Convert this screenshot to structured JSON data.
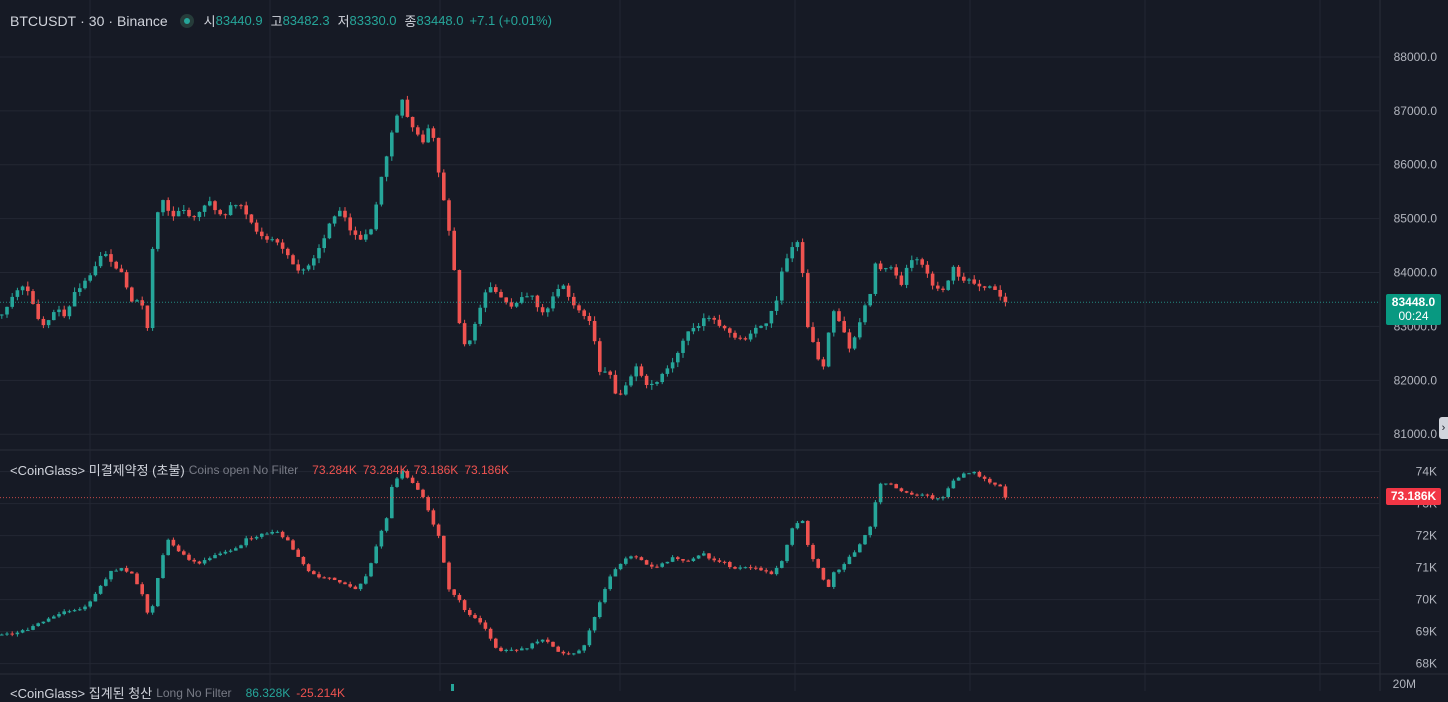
{
  "header": {
    "symbol": "BTCUSDT",
    "interval": "30",
    "exchange": "Binance",
    "sep": "·",
    "open_label": "시",
    "open": "83440.9",
    "high_label": "고",
    "high": "83482.3",
    "low_label": "저",
    "low": "83330.0",
    "close_label": "종",
    "close": "83448.0",
    "change": "+7.1 (+0.01%)"
  },
  "price_pane": {
    "axis_ticks": [
      "88000.0",
      "87000.0",
      "86000.0",
      "85000.0",
      "84000.0",
      "83000.0",
      "82000.0",
      "81000.0"
    ],
    "last_price": "83448.0",
    "countdown": "00:24"
  },
  "oi_pane": {
    "title": "<CoinGlass> 미결제약정 (초불)",
    "settings": "Coins open No Filter",
    "values": [
      "73.284K",
      "73.284K",
      "73.186K",
      "73.186K"
    ],
    "axis_ticks": [
      "74K",
      "73K",
      "72K",
      "71K",
      "70K",
      "69K",
      "68K"
    ],
    "last_value": "73.186K"
  },
  "liq_pane": {
    "title": "<CoinGlass> 집계된 청산",
    "settings": "Long No Filter",
    "value_green": "86.328K",
    "value_red": "-25.214K",
    "axis_tick": "20M"
  },
  "colors": {
    "up": "#26a69a",
    "down": "#ef5350",
    "bg": "#161a25",
    "grid": "#232733"
  },
  "chart_data": [
    {
      "type": "candlestick",
      "title": "BTCUSDT · 30 · Binance",
      "ylim": [
        80800,
        88500
      ],
      "y_ticks": [
        81000,
        82000,
        83000,
        84000,
        85000,
        86000,
        87000,
        88000
      ],
      "last_close": 83448.0,
      "anchors": [
        [
          0,
          83200
        ],
        [
          10,
          83500
        ],
        [
          20,
          83800
        ],
        [
          30,
          83500
        ],
        [
          40,
          83000
        ],
        [
          55,
          83300
        ],
        [
          65,
          83200
        ],
        [
          72,
          83600
        ],
        [
          80,
          83800
        ],
        [
          90,
          84000
        ],
        [
          100,
          84300
        ],
        [
          105,
          84400
        ],
        [
          110,
          84200
        ],
        [
          120,
          84000
        ],
        [
          130,
          83500
        ],
        [
          140,
          83400
        ],
        [
          145,
          82800
        ],
        [
          150,
          84300
        ],
        [
          155,
          85000
        ],
        [
          160,
          85400
        ],
        [
          170,
          85000
        ],
        [
          180,
          85200
        ],
        [
          190,
          85000
        ],
        [
          200,
          85200
        ],
        [
          210,
          85300
        ],
        [
          220,
          85000
        ],
        [
          230,
          85300
        ],
        [
          240,
          85200
        ],
        [
          250,
          84900
        ],
        [
          260,
          84700
        ],
        [
          270,
          84600
        ],
        [
          280,
          84500
        ],
        [
          290,
          84200
        ],
        [
          300,
          84000
        ],
        [
          310,
          84200
        ],
        [
          320,
          84500
        ],
        [
          330,
          85000
        ],
        [
          340,
          85200
        ],
        [
          350,
          84700
        ],
        [
          360,
          84600
        ],
        [
          370,
          84800
        ],
        [
          380,
          85800
        ],
        [
          390,
          86600
        ],
        [
          400,
          87200
        ],
        [
          410,
          86700
        ],
        [
          420,
          86400
        ],
        [
          430,
          86800
        ],
        [
          435,
          86000
        ],
        [
          440,
          85500
        ],
        [
          450,
          84500
        ],
        [
          455,
          83500
        ],
        [
          460,
          82600
        ],
        [
          470,
          82800
        ],
        [
          480,
          83500
        ],
        [
          490,
          83800
        ],
        [
          500,
          83500
        ],
        [
          510,
          83400
        ],
        [
          520,
          83500
        ],
        [
          530,
          83600
        ],
        [
          540,
          83200
        ],
        [
          550,
          83500
        ],
        [
          560,
          83800
        ],
        [
          570,
          83400
        ],
        [
          580,
          83200
        ],
        [
          590,
          83100
        ],
        [
          595,
          82500
        ],
        [
          600,
          82000
        ],
        [
          605,
          82300
        ],
        [
          615,
          81700
        ],
        [
          625,
          81900
        ],
        [
          635,
          82300
        ],
        [
          645,
          81900
        ],
        [
          655,
          82000
        ],
        [
          665,
          82200
        ],
        [
          675,
          82500
        ],
        [
          685,
          82900
        ],
        [
          695,
          83000
        ],
        [
          705,
          83200
        ],
        [
          715,
          83100
        ],
        [
          725,
          82900
        ],
        [
          735,
          82800
        ],
        [
          745,
          82800
        ],
        [
          755,
          83000
        ],
        [
          765,
          83100
        ],
        [
          775,
          83500
        ],
        [
          780,
          84000
        ],
        [
          785,
          84300
        ],
        [
          790,
          84500
        ],
        [
          795,
          84600
        ],
        [
          800,
          84200
        ],
        [
          805,
          83000
        ],
        [
          810,
          82800
        ],
        [
          815,
          82500
        ],
        [
          820,
          82000
        ],
        [
          825,
          82700
        ],
        [
          830,
          83300
        ],
        [
          840,
          83000
        ],
        [
          850,
          82500
        ],
        [
          855,
          83000
        ],
        [
          860,
          83200
        ],
        [
          870,
          83700
        ],
        [
          875,
          84300
        ],
        [
          880,
          84000
        ],
        [
          890,
          84100
        ],
        [
          900,
          83800
        ],
        [
          905,
          84100
        ],
        [
          910,
          84200
        ],
        [
          920,
          84200
        ],
        [
          930,
          83800
        ],
        [
          940,
          83600
        ],
        [
          945,
          83800
        ],
        [
          950,
          84100
        ],
        [
          955,
          84000
        ],
        [
          960,
          83900
        ],
        [
          970,
          83800
        ],
        [
          980,
          83700
        ],
        [
          990,
          83800
        ],
        [
          1000,
          83500
        ],
        [
          1006,
          83448
        ]
      ]
    },
    {
      "type": "candlestick",
      "title": "<CoinGlass> 미결제약정 (초불)",
      "ylim": [
        67800,
        74300
      ],
      "y_ticks": [
        68000,
        69000,
        70000,
        71000,
        72000,
        73000,
        74000
      ],
      "last_close": 73186,
      "anchors": [
        [
          0,
          68900
        ],
        [
          20,
          69000
        ],
        [
          40,
          69300
        ],
        [
          60,
          69600
        ],
        [
          80,
          69700
        ],
        [
          90,
          70000
        ],
        [
          100,
          70500
        ],
        [
          110,
          70900
        ],
        [
          120,
          71000
        ],
        [
          130,
          70800
        ],
        [
          140,
          70200
        ],
        [
          148,
          69300
        ],
        [
          155,
          70500
        ],
        [
          165,
          71900
        ],
        [
          175,
          71600
        ],
        [
          185,
          71300
        ],
        [
          195,
          71100
        ],
        [
          205,
          71300
        ],
        [
          215,
          71400
        ],
        [
          225,
          71500
        ],
        [
          235,
          71600
        ],
        [
          245,
          71900
        ],
        [
          255,
          72000
        ],
        [
          265,
          72100
        ],
        [
          275,
          72100
        ],
        [
          285,
          71900
        ],
        [
          295,
          71400
        ],
        [
          305,
          70900
        ],
        [
          315,
          70700
        ],
        [
          325,
          70700
        ],
        [
          335,
          70600
        ],
        [
          345,
          70500
        ],
        [
          355,
          70300
        ],
        [
          365,
          70800
        ],
        [
          375,
          71700
        ],
        [
          385,
          72600
        ],
        [
          390,
          73500
        ],
        [
          400,
          74000
        ],
        [
          410,
          73700
        ],
        [
          420,
          73300
        ],
        [
          430,
          72500
        ],
        [
          440,
          71700
        ],
        [
          445,
          70400
        ],
        [
          455,
          70100
        ],
        [
          465,
          69600
        ],
        [
          475,
          69400
        ],
        [
          485,
          69000
        ],
        [
          495,
          68400
        ],
        [
          510,
          68400
        ],
        [
          525,
          68500
        ],
        [
          540,
          68800
        ],
        [
          550,
          68600
        ],
        [
          560,
          68300
        ],
        [
          570,
          68300
        ],
        [
          580,
          68400
        ],
        [
          590,
          69200
        ],
        [
          600,
          70100
        ],
        [
          610,
          70800
        ],
        [
          620,
          71200
        ],
        [
          630,
          71400
        ],
        [
          640,
          71200
        ],
        [
          650,
          71000
        ],
        [
          660,
          71100
        ],
        [
          670,
          71300
        ],
        [
          680,
          71200
        ],
        [
          690,
          71200
        ],
        [
          700,
          71500
        ],
        [
          710,
          71200
        ],
        [
          720,
          71200
        ],
        [
          730,
          71000
        ],
        [
          740,
          71000
        ],
        [
          750,
          71000
        ],
        [
          760,
          70900
        ],
        [
          770,
          70800
        ],
        [
          780,
          71200
        ],
        [
          790,
          72200
        ],
        [
          800,
          72600
        ],
        [
          805,
          71800
        ],
        [
          810,
          71300
        ],
        [
          820,
          70800
        ],
        [
          825,
          70200
        ],
        [
          830,
          70800
        ],
        [
          840,
          71000
        ],
        [
          850,
          71400
        ],
        [
          860,
          71800
        ],
        [
          870,
          72400
        ],
        [
          875,
          73300
        ],
        [
          880,
          73700
        ],
        [
          890,
          73600
        ],
        [
          900,
          73400
        ],
        [
          910,
          73300
        ],
        [
          920,
          73300
        ],
        [
          930,
          73200
        ],
        [
          940,
          73100
        ],
        [
          950,
          73700
        ],
        [
          960,
          73900
        ],
        [
          970,
          74000
        ],
        [
          980,
          73800
        ],
        [
          990,
          73600
        ],
        [
          1000,
          73500
        ],
        [
          1006,
          73186
        ]
      ]
    }
  ]
}
